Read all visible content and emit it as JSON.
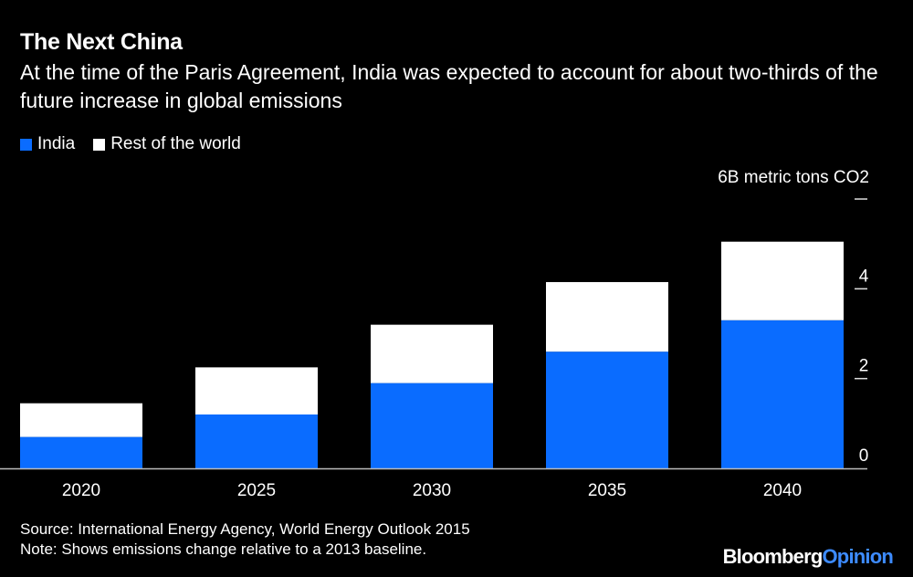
{
  "title": "The Next China",
  "subtitle": "At the time of the Paris Agreement, India was expected to account for about two-thirds of the future increase in global emissions",
  "source": "Source: International Energy Agency, World Energy Outlook 2015",
  "note": "Note: Shows emissions change relative to a 2013 baseline.",
  "logo": {
    "part1": "Bloomberg",
    "part2": "Opinion"
  },
  "colors": {
    "india": "#0a6cff",
    "rest": "#ffffff",
    "background": "#000000",
    "logo_accent": "#3d8bff"
  },
  "chart_data": {
    "type": "bar",
    "stacked": true,
    "categories": [
      "2020",
      "2025",
      "2030",
      "2035",
      "2040"
    ],
    "series": [
      {
        "name": "India",
        "values": [
          0.7,
          1.2,
          1.9,
          2.6,
          3.3
        ]
      },
      {
        "name": "Rest of the world",
        "values": [
          0.75,
          1.05,
          1.3,
          1.55,
          1.75
        ]
      }
    ],
    "ylabel": "6B metric tons CO2",
    "ylim": [
      0,
      6
    ],
    "yticks": [
      "0",
      "2",
      "4"
    ],
    "legend": "top-left"
  }
}
